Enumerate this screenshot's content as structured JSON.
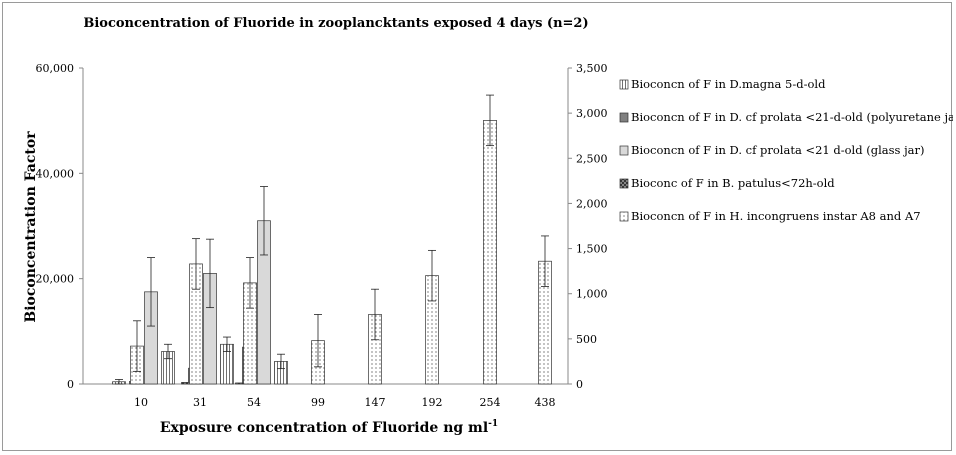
{
  "chart_data": {
    "type": "bar",
    "title": "Bioconcentration of Fluoride in zooplancktants exposed 4 days (n=2)",
    "xlabel": "Exposure concentration of Fluoride ng ml",
    "xlabel_superscript": "-1",
    "ylabel": "Bioconcentration Factor",
    "categories": [
      "10",
      "31",
      "54",
      "99",
      "147",
      "192",
      "254",
      "438"
    ],
    "y_left": {
      "lim": [
        0,
        60000
      ],
      "ticks": [
        "0",
        "20,000",
        "40,000",
        "60,000"
      ]
    },
    "y_right": {
      "lim": [
        0,
        3500
      ],
      "ticks": [
        "0",
        "500",
        "1,000",
        "1,500",
        "2,000",
        "2,500",
        "3,000",
        "3,500"
      ]
    },
    "legend_position": "right",
    "series": [
      {
        "name": "Bioconcn of F in D.magna 5-d-old",
        "axis": "right",
        "pattern": "vlines",
        "color": "#ffffff",
        "values": [
          25,
          null,
          null,
          null,
          null,
          null,
          null,
          null
        ],
        "errors": [
          25,
          null,
          null,
          null,
          null,
          null,
          null,
          null
        ]
      },
      {
        "name": "Bioconcn of F in D. cf prolata <21-d-old (polyuretane jar)",
        "axis": "left",
        "pattern": "solid",
        "color": "#808080",
        "values": [
          500,
          3000,
          7000,
          null,
          null,
          null,
          null,
          null
        ],
        "errors": [
          200,
          1500,
          3500,
          null,
          null,
          null,
          null,
          null
        ]
      },
      {
        "name": "Bioconcn of F in D. cf prolata <21  d-old (glass jar)",
        "axis": "left",
        "pattern": "solid",
        "color": "#d9d9d9",
        "values": [
          17500,
          21000,
          31000,
          null,
          null,
          null,
          null,
          null
        ],
        "errors": [
          6500,
          6500,
          6500,
          null,
          null,
          null,
          null,
          null
        ]
      },
      {
        "name": "Bioconc of F in B. patulus<72h-old",
        "axis": "left",
        "pattern": "crosshatch",
        "color": "#808080",
        "values": [
          null,
          300,
          200,
          null,
          null,
          null,
          null,
          null
        ],
        "errors": [
          null,
          null,
          null,
          null,
          null,
          null,
          null,
          null
        ]
      },
      {
        "name": "Bioconcn of F in H. incongruens instar A8 and A7",
        "axis": "right",
        "pattern": "dots",
        "color": "#ffffff",
        "values": [
          420,
          1330,
          1120,
          480,
          770,
          1200,
          2920,
          1360
        ],
        "errors": [
          280,
          280,
          280,
          290,
          280,
          280,
          280,
          280
        ]
      },
      {
        "name": "",
        "axis": "right",
        "pattern": "vlines",
        "color": "#ffffff",
        "values": [
          360,
          440,
          250,
          null,
          null,
          null,
          null,
          null
        ],
        "errors": [
          80,
          80,
          80,
          null,
          null,
          null,
          null,
          null
        ]
      }
    ],
    "grid": false
  }
}
